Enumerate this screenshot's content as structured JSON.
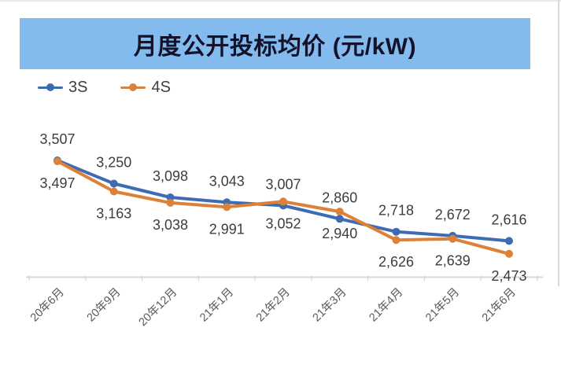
{
  "title": {
    "text": "月度公开投标均价 (元/kW)",
    "banner_color": "#84bbef",
    "text_color": "#12122a"
  },
  "legend": [
    {
      "label": "3S",
      "color": "#3e6bb2"
    },
    {
      "label": "4S",
      "color": "#dd8038"
    }
  ],
  "chart_data": {
    "type": "line",
    "title": "月度公开投标均价 (元/kW)",
    "xlabel": "",
    "ylabel": "元/kW",
    "categories": [
      "20年6月",
      "20年9月",
      "20年12月",
      "21年1月",
      "21年2月",
      "21年3月",
      "21年4月",
      "21年5月",
      "21年6月"
    ],
    "series": [
      {
        "name": "3S",
        "color": "#3e6bb2",
        "label_position": "above",
        "values": [
          3507,
          3250,
          3098,
          3043,
          3007,
          2860,
          2718,
          2672,
          2616
        ]
      },
      {
        "name": "4S",
        "color": "#dd8038",
        "label_position": "below",
        "values": [
          3497,
          3163,
          3038,
          2991,
          3052,
          2940,
          2626,
          2639,
          2473
        ]
      }
    ],
    "data_labels": true,
    "grid": false,
    "legend_position": "top-left",
    "axis_color": "#d8d8d8",
    "tick_color": "#cfcfcf",
    "label_color": "#3d3d3d",
    "tick_label_color": "#595959",
    "x_tick_label_rotation_deg": -45
  }
}
